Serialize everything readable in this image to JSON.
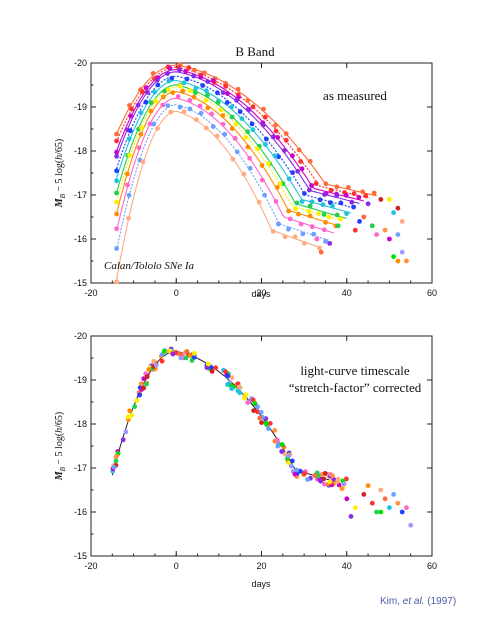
{
  "credit": {
    "author": "Kim, ",
    "etal": "et al.",
    "year": " (1997)"
  },
  "colors": [
    "#ff6a3a",
    "#ff3030",
    "#cc00cc",
    "#8a2be2",
    "#2040ff",
    "#20c0e0",
    "#20d050",
    "#ffee00",
    "#ff8c00",
    "#ff66cc",
    "#6aa0ff",
    "#ffaa80",
    "#d02020",
    "#00e000",
    "#9a9aff",
    "#ff9040"
  ],
  "chart_data": [
    {
      "type": "scatter",
      "title": "B Band",
      "annotation": "as measured",
      "annotation2": "Calan/Tololo SNe Ia",
      "xlabel": "days",
      "ylabel_parts": {
        "m": "M",
        "sub": "B",
        "rest": " − 5 log(",
        "h": "h",
        "tail": "/65)"
      },
      "xlim": [
        -20,
        60
      ],
      "ylim": [
        -15,
        -20
      ],
      "xticks": [
        -20,
        0,
        20,
        40,
        60
      ],
      "yticks": [
        -20,
        -19,
        -18,
        -17,
        -16,
        -15
      ],
      "peaks": [
        -19.95,
        -19.9,
        -19.85,
        -19.8,
        -19.7,
        -19.6,
        -19.5,
        -19.45,
        -19.35,
        -19.2,
        -19.05,
        -18.9,
        -18.85
      ],
      "widths": [
        1.25,
        1.2,
        1.15,
        1.12,
        1.08,
        1.05,
        1.0,
        0.97,
        0.94,
        0.9,
        0.86,
        0.8,
        0.78
      ],
      "late_points": [
        [
          44,
          -16.5
        ],
        [
          45,
          -16.8
        ],
        [
          46,
          -16.3
        ],
        [
          47,
          -16.1
        ],
        [
          48,
          -16.9
        ],
        [
          49,
          -16.2
        ],
        [
          50,
          -16.0
        ],
        [
          51,
          -16.6
        ],
        [
          52,
          -15.5
        ],
        [
          53,
          -16.4
        ],
        [
          53,
          -15.7
        ],
        [
          42,
          -16.2
        ],
        [
          43,
          -16.4
        ],
        [
          50,
          -16.9
        ],
        [
          52,
          -16.1
        ],
        [
          51,
          -15.6
        ],
        [
          34,
          -15.7
        ],
        [
          36,
          -15.9
        ],
        [
          38,
          -16.3
        ],
        [
          33,
          -16.0
        ],
        [
          52,
          -16.7
        ],
        [
          54,
          -15.5
        ]
      ]
    },
    {
      "type": "scatter",
      "title": "",
      "annotation": "light-curve timescale",
      "annotation2": "“stretch-factor” corrected",
      "xlabel": "days",
      "ylabel_parts": {
        "m": "M",
        "sub": "B",
        "rest": " − 5 log(",
        "h": "h",
        "tail": "/65)"
      },
      "xlim": [
        -20,
        60
      ],
      "ylim": [
        -15,
        -20
      ],
      "xticks": [
        -20,
        0,
        20,
        40,
        60
      ],
      "yticks": [
        -20,
        -19,
        -18,
        -17,
        -16,
        -15
      ],
      "template_peak": -19.65,
      "late_points": [
        [
          40,
          -16.3
        ],
        [
          42,
          -16.1
        ],
        [
          44,
          -16.4
        ],
        [
          46,
          -16.2
        ],
        [
          47,
          -16.0
        ],
        [
          48,
          -16.5
        ],
        [
          49,
          -16.3
        ],
        [
          50,
          -16.1
        ],
        [
          51,
          -16.4
        ],
        [
          52,
          -16.2
        ],
        [
          53,
          -16.0
        ],
        [
          54,
          -16.1
        ],
        [
          55,
          -15.7
        ],
        [
          41,
          -15.9
        ],
        [
          45,
          -16.6
        ],
        [
          48,
          -16.0
        ]
      ]
    }
  ]
}
